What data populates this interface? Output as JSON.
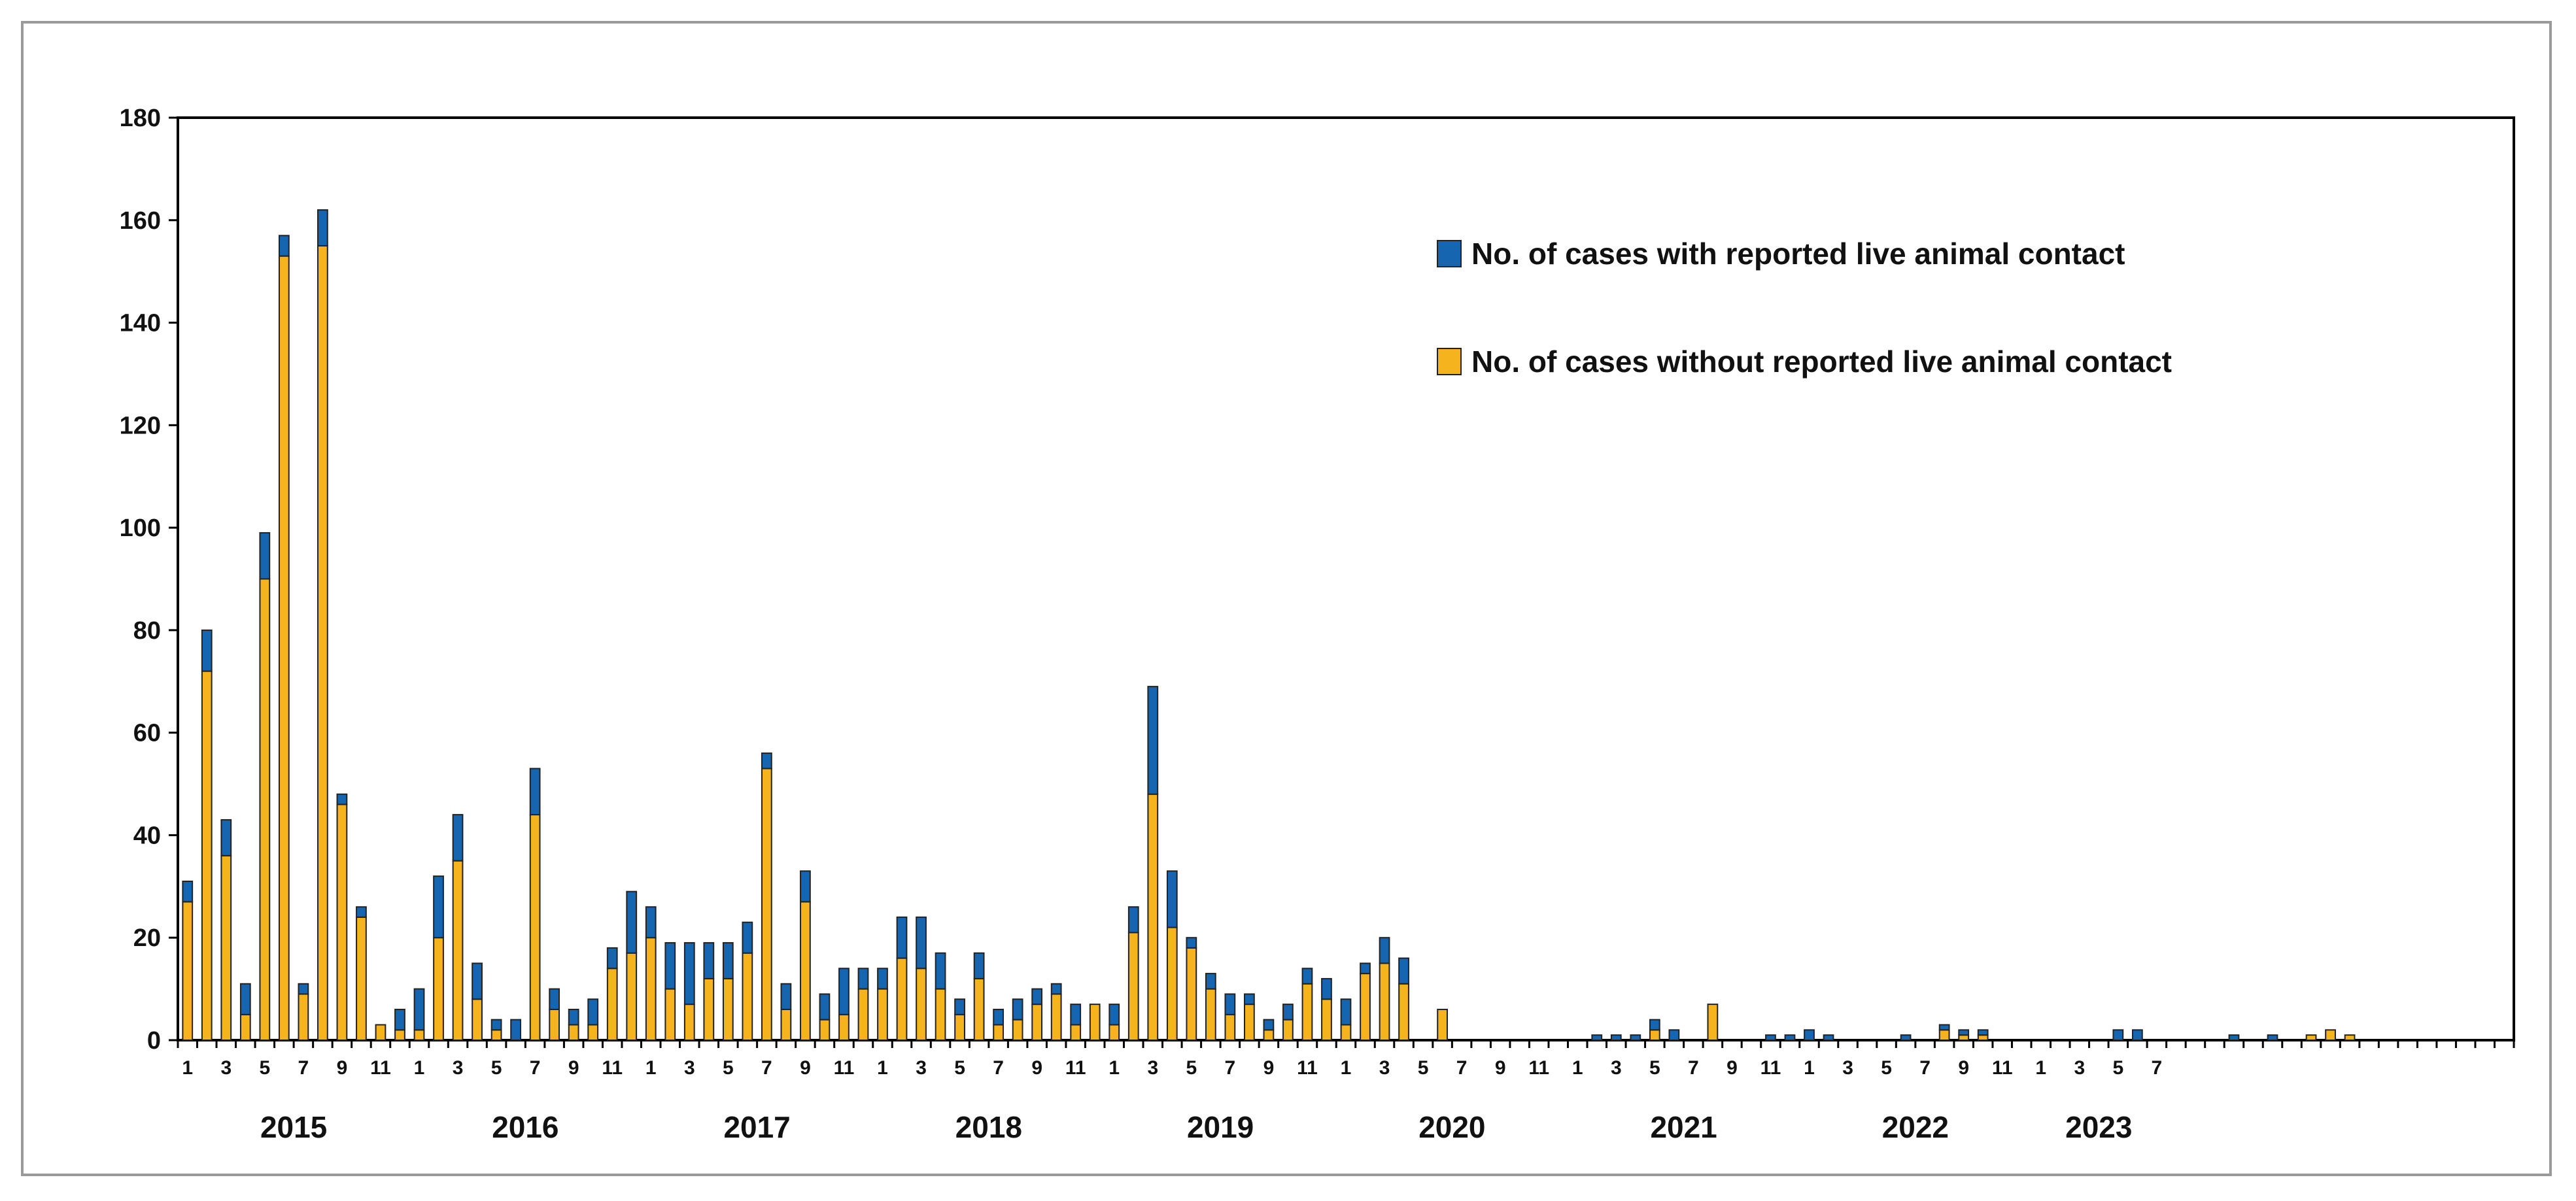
{
  "chart_data": {
    "type": "bar",
    "stacked": true,
    "title": "",
    "xlabel": "",
    "ylabel": "",
    "ylim": [
      0,
      180
    ],
    "y_ticks": [
      0,
      20,
      40,
      60,
      80,
      100,
      120,
      140,
      160,
      180
    ],
    "x_tick_labels": [
      "1",
      "3",
      "5",
      "7",
      "9",
      "11",
      "1",
      "3",
      "5",
      "7",
      "9",
      "11",
      "1",
      "3",
      "5",
      "7",
      "9",
      "11",
      "1",
      "3",
      "5",
      "7",
      "9",
      "11",
      "1",
      "3",
      "5",
      "7",
      "9",
      "11",
      "1",
      "3",
      "5",
      "7",
      "9",
      "11",
      "1",
      "3",
      "5",
      "7",
      "9",
      "11",
      "1",
      "3",
      "5",
      "7",
      "9",
      "11",
      "1",
      "3",
      "5",
      "7"
    ],
    "year_labels": [
      "2015",
      "2016",
      "2017",
      "2018",
      "2019",
      "2020",
      "2021",
      "2022",
      "2023"
    ],
    "legend_position": "top-right",
    "series": [
      {
        "name": "No. of cases without reported live animal contact",
        "color": "#F5B41E",
        "values": [
          27,
          72,
          36,
          5,
          90,
          153,
          9,
          155,
          46,
          24,
          3,
          2,
          2,
          20,
          35,
          8,
          2,
          0,
          44,
          6,
          3,
          3,
          14,
          17,
          20,
          10,
          7,
          12,
          12,
          17,
          53,
          6,
          27,
          4,
          5,
          10,
          10,
          16,
          14,
          10,
          5,
          12,
          3,
          4,
          7,
          9,
          3,
          7,
          3,
          21,
          48,
          22,
          18,
          10,
          5,
          7,
          2,
          4,
          11,
          8,
          3,
          13,
          15,
          11,
          0,
          6,
          0,
          0,
          0,
          0,
          0,
          0,
          0,
          0,
          0,
          0,
          2,
          0,
          0,
          7,
          0,
          0,
          0,
          0,
          0,
          0,
          0,
          0,
          0,
          0,
          0,
          2,
          1,
          1,
          0,
          0,
          0,
          0,
          0,
          0,
          0,
          0,
          0,
          0,
          0,
          0,
          0,
          0,
          0,
          0,
          1,
          2,
          1,
          0,
          0,
          0,
          0,
          0,
          0,
          0,
          0
        ]
      },
      {
        "name": "No. of cases with reported live animal contact",
        "color": "#1565B0",
        "values": [
          4,
          8,
          7,
          6,
          9,
          4,
          2,
          7,
          2,
          2,
          0,
          4,
          8,
          12,
          9,
          7,
          2,
          4,
          9,
          4,
          3,
          5,
          4,
          12,
          6,
          9,
          12,
          7,
          7,
          6,
          3,
          5,
          6,
          5,
          9,
          4,
          4,
          8,
          10,
          7,
          3,
          5,
          3,
          4,
          3,
          2,
          4,
          0,
          4,
          5,
          21,
          11,
          2,
          3,
          4,
          2,
          2,
          3,
          3,
          4,
          5,
          2,
          5,
          5,
          0,
          0,
          0,
          0,
          0,
          0,
          0,
          0,
          0,
          1,
          1,
          1,
          2,
          2,
          0,
          0,
          0,
          0,
          1,
          1,
          2,
          1,
          0,
          0,
          0,
          1,
          0,
          1,
          1,
          1,
          0,
          0,
          0,
          0,
          0,
          0,
          2,
          2,
          0,
          0,
          0,
          0,
          1,
          0,
          1,
          0,
          0,
          0,
          0,
          0,
          0,
          0,
          0,
          0,
          0,
          0,
          0
        ]
      }
    ]
  }
}
